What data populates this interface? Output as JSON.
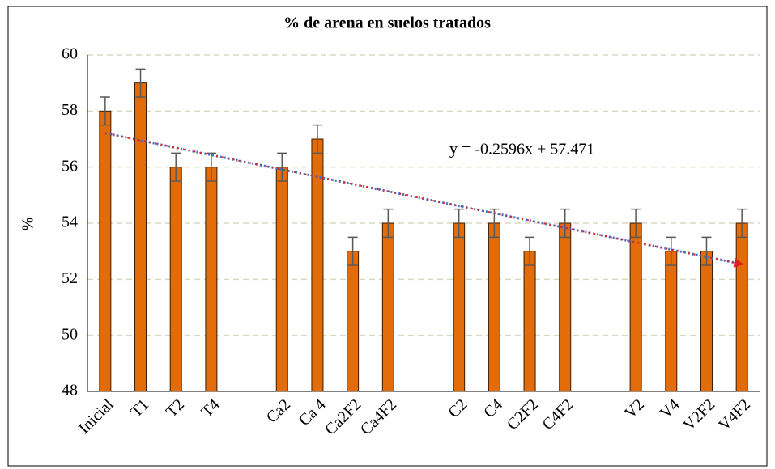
{
  "chart_data": {
    "type": "bar",
    "title": "% de arena en suelos tratados",
    "y_label": "%",
    "categories": [
      "Inicial",
      "T1",
      "T2",
      "T4",
      null,
      "Ca2",
      "Ca 4",
      "Ca2F2",
      "Ca4F2",
      null,
      "C2",
      "C4",
      "C2F2",
      "C4F2",
      null,
      "V2",
      "V4",
      "V2F2",
      "V4F2"
    ],
    "values": [
      58,
      59,
      56,
      56,
      null,
      56,
      57,
      53,
      54,
      null,
      54,
      54,
      53,
      54,
      null,
      54,
      53,
      53,
      54
    ],
    "errors": [
      0.5,
      0.5,
      0.5,
      0.5,
      null,
      0.5,
      0.5,
      0.5,
      0.5,
      null,
      0.5,
      0.5,
      0.5,
      0.5,
      null,
      0.5,
      0.5,
      0.5,
      0.5
    ],
    "color": "#e36c0a",
    "trendline": {
      "slope": -0.2596,
      "intercept": 57.471,
      "label": "y = -0.2596x + 57.471"
    },
    "ylim": [
      48,
      60
    ],
    "yticks": [
      48,
      50,
      52,
      54,
      56,
      58,
      60
    ],
    "grid": true
  }
}
